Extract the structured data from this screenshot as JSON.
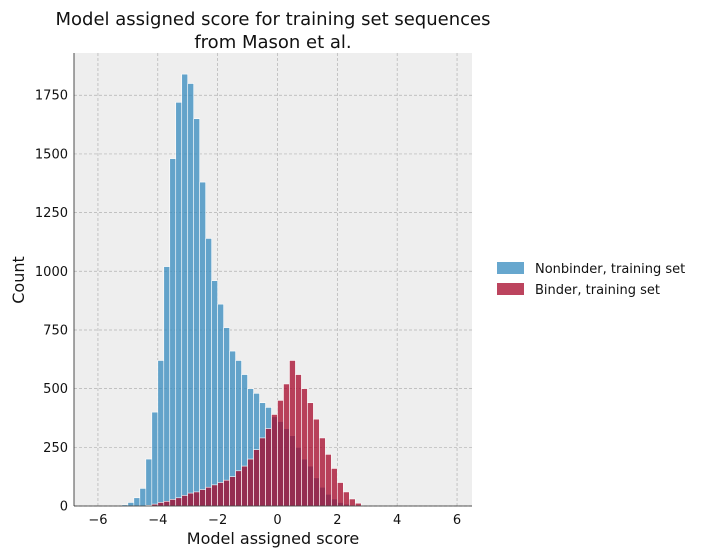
{
  "chart_data": {
    "type": "bar",
    "title_lines": [
      "Model assigned score for training set sequences",
      "from Mason et al."
    ],
    "xlabel": "Model assigned score",
    "ylabel": "Count",
    "xlim": [
      -6.8,
      6.5
    ],
    "ylim": [
      0,
      1930
    ],
    "xticks": [
      -6,
      -4,
      -2,
      0,
      2,
      4,
      6
    ],
    "yticks": [
      0,
      250,
      500,
      750,
      1000,
      1250,
      1500,
      1750
    ],
    "grid": true,
    "legend_position": "right",
    "bin_start": -5.6,
    "bin_width": 0.2,
    "series": [
      {
        "name": "Nonbinder, training set",
        "color": "#348ABD",
        "values": [
          0,
          0,
          5,
          15,
          35,
          75,
          200,
          400,
          620,
          1020,
          1480,
          1720,
          1840,
          1800,
          1650,
          1380,
          1140,
          960,
          860,
          760,
          660,
          620,
          560,
          500,
          480,
          440,
          420,
          380,
          360,
          330,
          300,
          250,
          200,
          170,
          120,
          80,
          50,
          30,
          15,
          8,
          3,
          1
        ]
      },
      {
        "name": "Binder, training set",
        "color": "#A60628",
        "values": [
          0,
          0,
          0,
          0,
          0,
          0,
          3,
          8,
          15,
          20,
          28,
          35,
          45,
          55,
          60,
          70,
          80,
          90,
          100,
          110,
          125,
          150,
          170,
          200,
          240,
          290,
          330,
          390,
          450,
          520,
          620,
          560,
          500,
          440,
          370,
          290,
          220,
          160,
          100,
          60,
          30,
          12
        ]
      }
    ]
  }
}
